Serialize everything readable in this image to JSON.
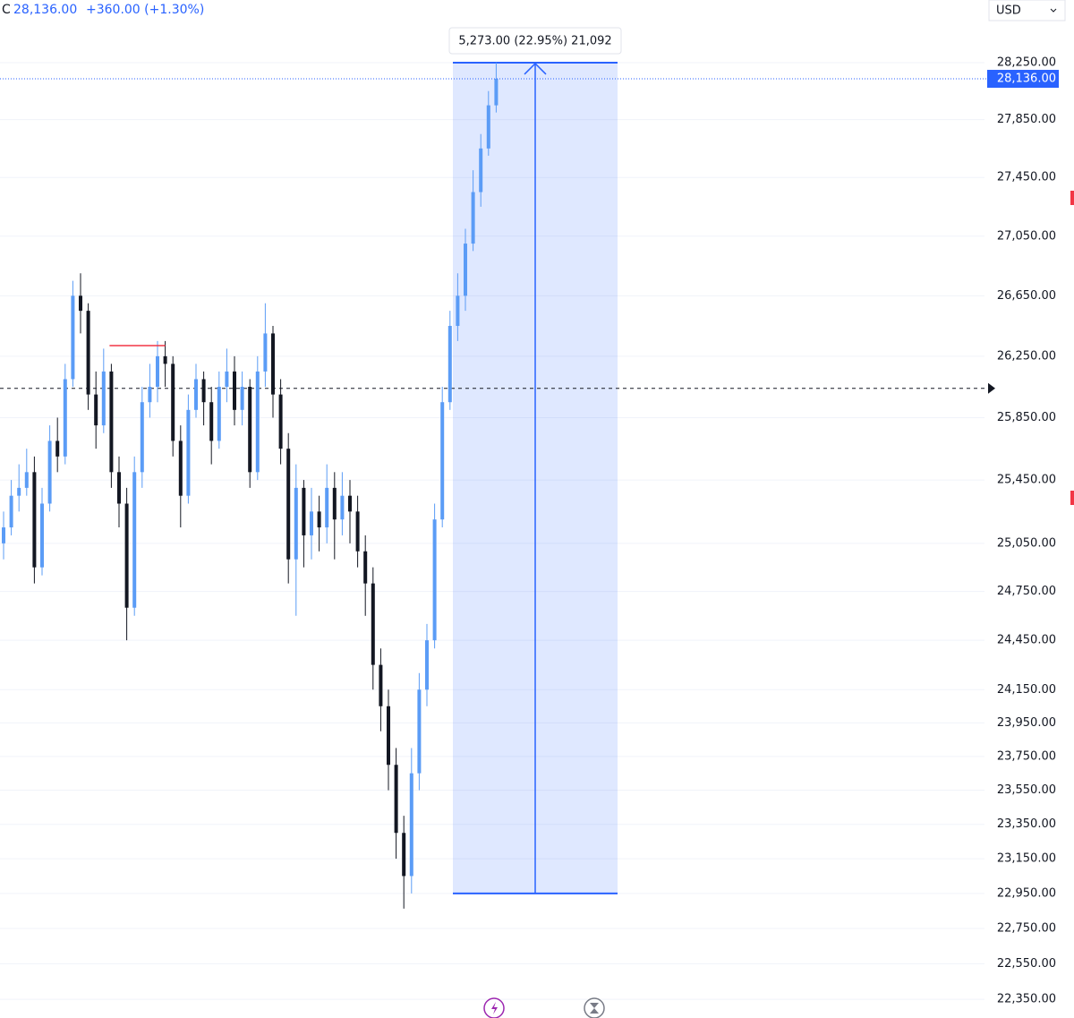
{
  "chart_data": {
    "type": "candlestick",
    "header": {
      "symbol": "C",
      "last": "28,136.00",
      "change": "+360.00 (+1.30%)"
    },
    "currency": "USD",
    "log_scale": true,
    "grid": true,
    "up_color": "#5b9cf6",
    "down_color": "#131722",
    "ylim": [
      22246,
      28696
    ],
    "yticks": [
      {
        "value": 28250,
        "label": "28,250.00"
      },
      {
        "value": 27850,
        "label": "27,850.00"
      },
      {
        "value": 27450,
        "label": "27,450.00"
      },
      {
        "value": 27050,
        "label": "27,050.00"
      },
      {
        "value": 26650,
        "label": "26,650.00"
      },
      {
        "value": 26250,
        "label": "26,250.00"
      },
      {
        "value": 25850,
        "label": "25,850.00"
      },
      {
        "value": 25450,
        "label": "25,450.00"
      },
      {
        "value": 25050,
        "label": "25,050.00"
      },
      {
        "value": 24750,
        "label": "24,750.00"
      },
      {
        "value": 24450,
        "label": "24,450.00"
      },
      {
        "value": 24150,
        "label": "24,150.00"
      },
      {
        "value": 23950,
        "label": "23,950.00"
      },
      {
        "value": 23750,
        "label": "23,750.00"
      },
      {
        "value": 23550,
        "label": "23,550.00"
      },
      {
        "value": 23350,
        "label": "23,350.00"
      },
      {
        "value": 23150,
        "label": "23,150.00"
      },
      {
        "value": 22950,
        "label": "22,950.00"
      },
      {
        "value": 22750,
        "label": "22,750.00"
      },
      {
        "value": 22550,
        "label": "22,550.00"
      },
      {
        "value": 22350,
        "label": "22,350.00"
      }
    ],
    "last_price": {
      "value": 28136,
      "label": "28,136.00"
    },
    "horizontal_ray": 26040,
    "horizontal_line": {
      "value": 26320,
      "color": "#f23645"
    },
    "measure": {
      "from": 22950,
      "to": 28250,
      "label": "5,273.00 (22.95%) 21,092",
      "color": "#2962ff"
    },
    "open": [
      25050,
      25150,
      25350,
      25400,
      25500,
      24900,
      25300,
      25700,
      25600,
      26100,
      26650,
      26550,
      26000,
      25800,
      26150,
      25500,
      25300,
      24650,
      25500,
      25950,
      26050,
      26250,
      26200,
      25700,
      25350,
      25900,
      26100,
      25950,
      25700,
      26050,
      26150,
      25900,
      26050,
      25500,
      26150,
      26400,
      26000,
      25650,
      24950,
      25400,
      25100,
      25250,
      25150,
      25400,
      25200,
      25350,
      25250,
      25000,
      24800,
      24300,
      24050,
      23700,
      23300,
      23050,
      23650,
      24150,
      24450,
      25200,
      25950,
      26450,
      26650,
      27000,
      27350,
      27650,
      27950
    ],
    "high": [
      25250,
      25450,
      25550,
      25650,
      25600,
      25400,
      25800,
      25850,
      26200,
      26750,
      26800,
      26600,
      26150,
      26300,
      26200,
      25600,
      25400,
      25600,
      26050,
      26200,
      26350,
      26350,
      26250,
      25800,
      26000,
      26200,
      26150,
      26050,
      26150,
      26300,
      26250,
      26150,
      26100,
      26250,
      26600,
      26450,
      26100,
      25750,
      25550,
      25450,
      25400,
      25350,
      25550,
      25500,
      25500,
      25450,
      25350,
      25100,
      24900,
      24400,
      24150,
      23800,
      23400,
      23800,
      24250,
      24550,
      25300,
      26050,
      26550,
      26800,
      27100,
      27500,
      27750,
      28050,
      28250
    ],
    "low": [
      24950,
      25100,
      25250,
      25350,
      24800,
      24850,
      25250,
      25500,
      25550,
      26050,
      26400,
      25900,
      25650,
      25750,
      25400,
      25150,
      24450,
      24600,
      25400,
      25850,
      25950,
      26050,
      25600,
      25150,
      25300,
      25850,
      25800,
      25550,
      25650,
      25950,
      25800,
      25800,
      25400,
      25450,
      26050,
      25850,
      25550,
      24800,
      24600,
      24900,
      24950,
      25000,
      25050,
      24950,
      25100,
      25050,
      24900,
      24600,
      24150,
      23900,
      23550,
      23150,
      22863,
      22950,
      23550,
      24050,
      24400,
      25150,
      25900,
      26350,
      26550,
      26950,
      27250,
      27600,
      27900
    ],
    "close": [
      25150,
      25350,
      25400,
      25500,
      24900,
      25300,
      25700,
      25600,
      26100,
      26650,
      26550,
      26000,
      25800,
      26150,
      25500,
      25300,
      24650,
      25500,
      25950,
      26050,
      26250,
      26200,
      25700,
      25350,
      25900,
      26100,
      25950,
      25700,
      26050,
      26150,
      25900,
      26050,
      25500,
      26150,
      26400,
      26000,
      25650,
      24950,
      25400,
      25100,
      25250,
      25150,
      25400,
      25200,
      25350,
      25250,
      25000,
      24800,
      24300,
      24050,
      23700,
      23300,
      23050,
      23650,
      24150,
      24450,
      25200,
      25950,
      26450,
      26650,
      27000,
      27350,
      27650,
      27950,
      28136
    ]
  }
}
